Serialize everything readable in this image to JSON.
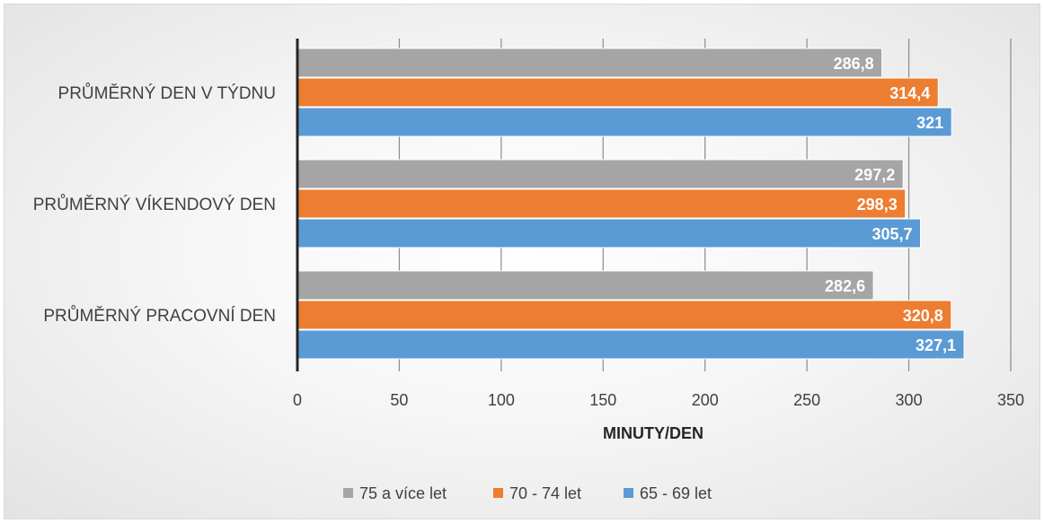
{
  "chart_data": {
    "type": "bar",
    "orientation": "horizontal",
    "categories": [
      "PRŮMĚRNÝ DEN V TÝDNU",
      "PRŮMĚRNÝ VÍKENDOVÝ DEN",
      "PRŮMĚRNÝ PRACOVNÍ DEN"
    ],
    "series": [
      {
        "name": "75 a více let",
        "color": "#a5a5a5",
        "values": [
          286.8,
          297.2,
          282.6
        ],
        "labels": [
          "286,8",
          "297,2",
          "282,6"
        ]
      },
      {
        "name": "70 - 74 let",
        "color": "#ed7d31",
        "values": [
          314.4,
          298.3,
          320.8
        ],
        "labels": [
          "314,4",
          "298,3",
          "320,8"
        ]
      },
      {
        "name": "65 - 69 let",
        "color": "#5b9bd5",
        "values": [
          321,
          305.7,
          327.1
        ],
        "labels": [
          "321",
          "305,7",
          "327,1"
        ]
      }
    ],
    "xlabel": "MINUTY/DEN",
    "ylabel": "",
    "xlim": [
      0,
      350
    ],
    "ticks": [
      0,
      50,
      100,
      150,
      200,
      250,
      300,
      350
    ],
    "grid": true,
    "legend": "bottom"
  }
}
